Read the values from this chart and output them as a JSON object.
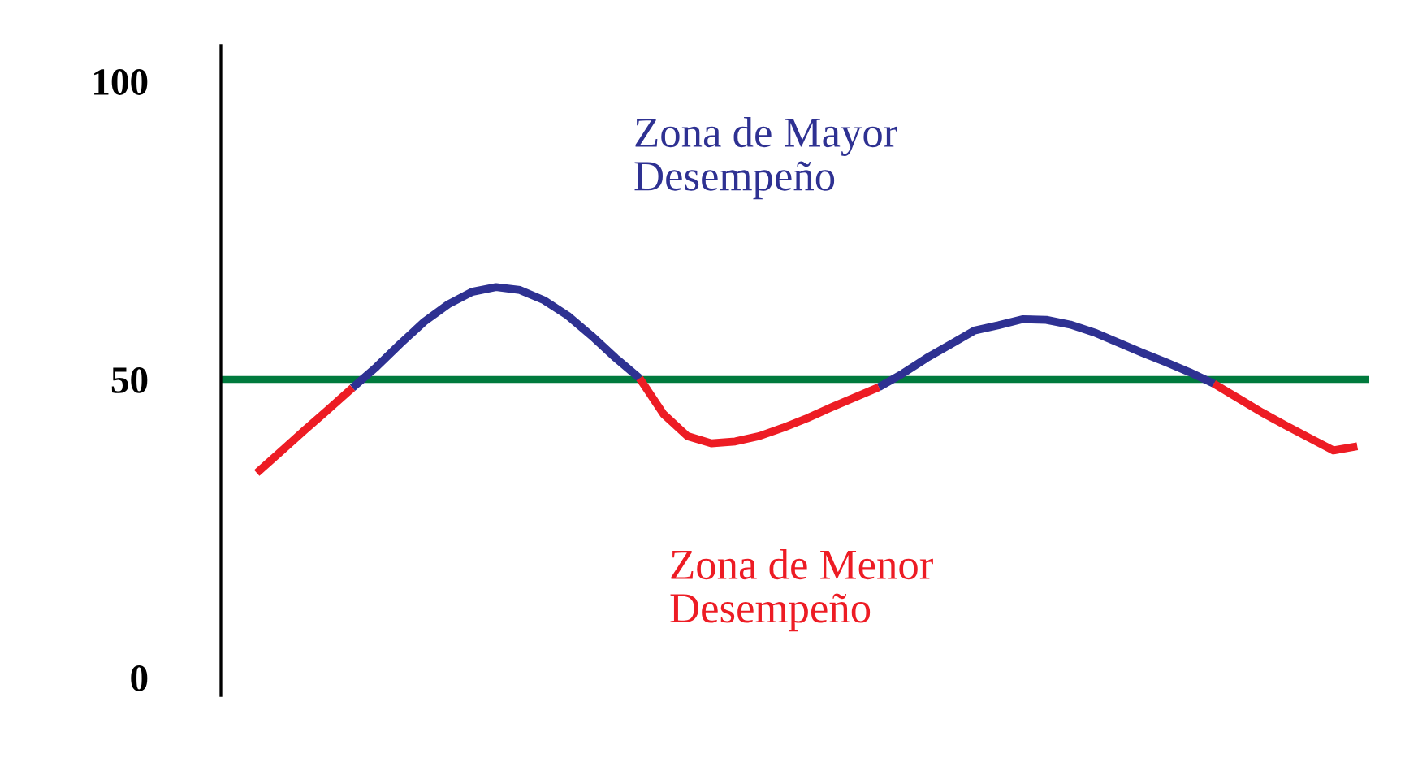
{
  "chart_data": {
    "type": "line",
    "categories": [
      null,
      null,
      null,
      null,
      null,
      null,
      null,
      null,
      null,
      null,
      null,
      null,
      null,
      null,
      null,
      null,
      null,
      null,
      null,
      null,
      null,
      null,
      null,
      null,
      null,
      null,
      null,
      null,
      null,
      null,
      null,
      null,
      null,
      null,
      null,
      null,
      null,
      null,
      null,
      null,
      null,
      null,
      null,
      null,
      null,
      null,
      null,
      null
    ],
    "series": [
      {
        "color": "#2e3192",
        "values": [
          null,
          null,
          null,
          null,
          null,
          48.6,
          52.1,
          56.0,
          59.7,
          62.6,
          64.7,
          65.5,
          65.0,
          63.3,
          60.7,
          57.3,
          53.6,
          50.2,
          null,
          null,
          null,
          null,
          null,
          null,
          null,
          null,
          null,
          48.7,
          51.0,
          53.6,
          55.9,
          58.2,
          59.1,
          60.1,
          60.0,
          59.2,
          57.9,
          56.2,
          54.5,
          52.9,
          51.2,
          49.3,
          null,
          null,
          null,
          null,
          null,
          null
        ]
      },
      {
        "color": "#ed1c24",
        "values": [
          null,
          34.3,
          37.9,
          41.5,
          45.0,
          48.6,
          null,
          null,
          null,
          null,
          null,
          null,
          null,
          null,
          null,
          null,
          null,
          50.2,
          44.2,
          40.5,
          39.3,
          39.6,
          40.5,
          41.9,
          43.5,
          45.3,
          47.0,
          48.7,
          null,
          null,
          null,
          null,
          null,
          null,
          null,
          null,
          null,
          null,
          null,
          null,
          null,
          49.3,
          46.9,
          44.5,
          42.3,
          40.2,
          38.1,
          38.8
        ]
      }
    ],
    "ylim": [
      -3,
      106
    ],
    "yticks": [
      0,
      50,
      100
    ],
    "ref_lines": [
      {
        "axis": "y",
        "value": 50,
        "color": "#007a3d"
      }
    ],
    "annotations": [
      "Zona de Mayor\nDesempeño",
      "Zona de Menor\nDesempeño"
    ],
    "grid": false,
    "legend": false,
    "marker": "none",
    "line_style": "solid"
  }
}
